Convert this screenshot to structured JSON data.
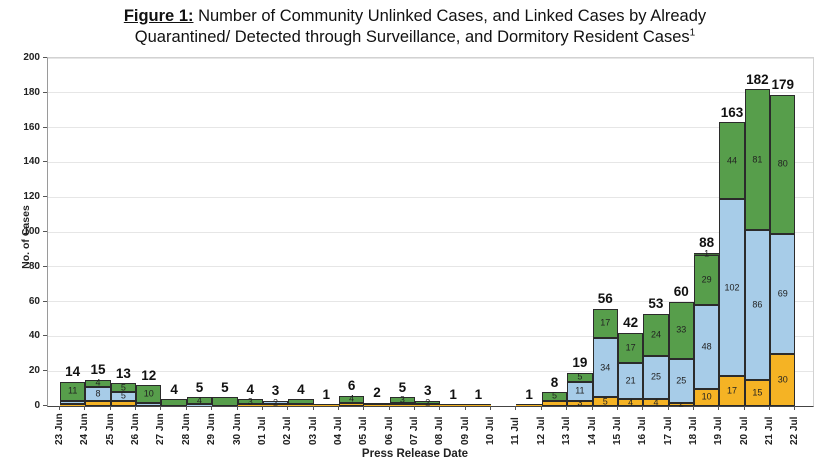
{
  "title": {
    "figure_label": "Figure 1:",
    "line1": " Number of Community Unlinked Cases, and Linked Cases by Already",
    "line2": "Quarantined/ Detected through Surveillance, and Dormitory Resident Cases",
    "superscript": "1"
  },
  "axes": {
    "y_label": "No. of Cases",
    "x_label": "Press Release Date",
    "y_ticks": [
      0,
      20,
      40,
      60,
      80,
      100,
      120,
      140,
      160,
      180,
      200
    ],
    "y_max": 200,
    "x_tick_labels": [
      "23 Jun",
      "24 Jun",
      "25 Jun",
      "26 Jun",
      "27 Jun",
      "28 Jun",
      "29 Jun",
      "30 Jun",
      "01 Jul",
      "02 Jul",
      "03 Jul",
      "04 Jul",
      "05 Jul",
      "06 Jul",
      "07 Jul",
      "08 Jul",
      "09 Jul",
      "10 Jul",
      "11 Jul",
      "12 Jul",
      "13 Jul",
      "14 Jul",
      "15 Jul",
      "16 Jul",
      "17 Jul",
      "18 Jul",
      "19 Jul",
      "20 Jul",
      "21 Jul",
      "22 Jul"
    ]
  },
  "colors": {
    "green": "#579e4b",
    "blue": "#a7cce8",
    "orange": "#f5b324",
    "dark_green": "#3f6b36",
    "bar_border": "#2b2b2b",
    "grid": "#e6e6e6",
    "axis": "#444444"
  },
  "chart_data": {
    "type": "bar",
    "stacked": true,
    "title": "Number of Community Unlinked Cases, and Linked Cases by Already Quarantined/ Detected through Surveillance, and Dormitory Resident Cases",
    "xlabel": "Press Release Date",
    "ylabel": "No. of Cases",
    "ylim": [
      0,
      200
    ],
    "grid": true,
    "legend_position": "none",
    "segment_order_top_to_bottom": [
      "dark_green",
      "green",
      "blue",
      "orange"
    ],
    "bars": [
      {
        "date": "24 Jun",
        "total": 14,
        "segments": [
          {
            "color": "green",
            "value": 11,
            "label": "11"
          },
          {
            "color": "blue",
            "value": 2
          },
          {
            "color": "orange",
            "value": 1
          }
        ]
      },
      {
        "date": "25 Jun",
        "total": 15,
        "segments": [
          {
            "color": "green",
            "value": 4,
            "label": "4"
          },
          {
            "color": "blue",
            "value": 8,
            "label": "8"
          },
          {
            "color": "orange",
            "value": 3
          }
        ]
      },
      {
        "date": "26 Jun",
        "total": 13,
        "segments": [
          {
            "color": "green",
            "value": 5,
            "label": "5"
          },
          {
            "color": "blue",
            "value": 5,
            "label": "5"
          },
          {
            "color": "orange",
            "value": 3
          }
        ]
      },
      {
        "date": "27 Jun",
        "total": 12,
        "segments": [
          {
            "color": "green",
            "value": 10,
            "label": "10"
          },
          {
            "color": "blue",
            "value": 2
          }
        ]
      },
      {
        "date": "28 Jun",
        "total": 4,
        "segments": [
          {
            "color": "green",
            "value": 4
          }
        ]
      },
      {
        "date": "29 Jun",
        "total": 5,
        "segments": [
          {
            "color": "green",
            "value": 4,
            "label": "4"
          },
          {
            "color": "blue",
            "value": 1
          }
        ]
      },
      {
        "date": "30 Jun",
        "total": 5,
        "segments": [
          {
            "color": "green",
            "value": 5
          }
        ]
      },
      {
        "date": "01 Jul",
        "total": 4,
        "segments": [
          {
            "color": "green",
            "value": 3,
            "label": "3"
          },
          {
            "color": "orange",
            "value": 1
          }
        ]
      },
      {
        "date": "02 Jul",
        "total": 3,
        "segments": [
          {
            "color": "blue",
            "value": 2,
            "label": "2"
          },
          {
            "color": "orange",
            "value": 1
          }
        ]
      },
      {
        "date": "03 Jul",
        "total": 4,
        "segments": [
          {
            "color": "green",
            "value": 3
          },
          {
            "color": "orange",
            "value": 1
          }
        ]
      },
      {
        "date": "04 Jul",
        "total": 1,
        "segments": [
          {
            "color": "orange",
            "value": 1
          }
        ]
      },
      {
        "date": "05 Jul",
        "total": 6,
        "segments": [
          {
            "color": "green",
            "value": 4,
            "label": "4"
          },
          {
            "color": "orange",
            "value": 2
          }
        ]
      },
      {
        "date": "06 Jul",
        "total": 2,
        "segments": [
          {
            "color": "green",
            "value": 1
          },
          {
            "color": "orange",
            "value": 1
          }
        ]
      },
      {
        "date": "07 Jul",
        "total": 5,
        "segments": [
          {
            "color": "green",
            "value": 3,
            "label": "3"
          },
          {
            "color": "blue",
            "value": 1
          },
          {
            "color": "orange",
            "value": 1
          }
        ]
      },
      {
        "date": "08 Jul",
        "total": 3,
        "segments": [
          {
            "color": "green",
            "value": 2,
            "label": "2"
          },
          {
            "color": "orange",
            "value": 1
          }
        ]
      },
      {
        "date": "09 Jul",
        "total": 1,
        "segments": [
          {
            "color": "orange",
            "value": 1
          }
        ]
      },
      {
        "date": "10 Jul",
        "total": 1,
        "segments": [
          {
            "color": "orange",
            "value": 1
          }
        ]
      },
      {
        "date": "11 Jul",
        "total": 0,
        "segments": []
      },
      {
        "date": "12 Jul",
        "total": 1,
        "segments": [
          {
            "color": "orange",
            "value": 1
          }
        ]
      },
      {
        "date": "13 Jul",
        "total": 8,
        "segments": [
          {
            "color": "green",
            "value": 5,
            "label": "5"
          },
          {
            "color": "orange",
            "value": 3
          }
        ]
      },
      {
        "date": "14 Jul",
        "total": 19,
        "segments": [
          {
            "color": "green",
            "value": 5,
            "label": "5"
          },
          {
            "color": "blue",
            "value": 11,
            "label": "11"
          },
          {
            "color": "orange",
            "value": 3,
            "label": "3"
          }
        ]
      },
      {
        "date": "15 Jul",
        "total": 56,
        "segments": [
          {
            "color": "green",
            "value": 17,
            "label": "17"
          },
          {
            "color": "blue",
            "value": 34,
            "label": "34"
          },
          {
            "color": "orange",
            "value": 5,
            "label": "5"
          }
        ]
      },
      {
        "date": "16 Jul",
        "total": 42,
        "segments": [
          {
            "color": "green",
            "value": 17,
            "label": "17"
          },
          {
            "color": "blue",
            "value": 21,
            "label": "21"
          },
          {
            "color": "orange",
            "value": 4,
            "label": "4"
          }
        ]
      },
      {
        "date": "17 Jul",
        "total": 53,
        "segments": [
          {
            "color": "green",
            "value": 24,
            "label": "24"
          },
          {
            "color": "blue",
            "value": 25,
            "label": "25"
          },
          {
            "color": "orange",
            "value": 4,
            "label": "4"
          }
        ]
      },
      {
        "date": "18 Jul",
        "total": 60,
        "segments": [
          {
            "color": "green",
            "value": 33,
            "label": "33"
          },
          {
            "color": "blue",
            "value": 25,
            "label": "25"
          },
          {
            "color": "orange",
            "value": 2,
            "label": "2"
          }
        ]
      },
      {
        "date": "19 Jul",
        "total": 88,
        "segments": [
          {
            "color": "dark_green",
            "value": 1,
            "label": "1"
          },
          {
            "color": "green",
            "value": 29,
            "label": "29"
          },
          {
            "color": "blue",
            "value": 48,
            "label": "48"
          },
          {
            "color": "orange",
            "value": 10,
            "label": "10"
          }
        ]
      },
      {
        "date": "20 Jul",
        "total": 163,
        "segments": [
          {
            "color": "green",
            "value": 44,
            "label": "44"
          },
          {
            "color": "blue",
            "value": 102,
            "label": "102"
          },
          {
            "color": "orange",
            "value": 17,
            "label": "17"
          }
        ]
      },
      {
        "date": "21 Jul",
        "total": 182,
        "segments": [
          {
            "color": "green",
            "value": 81,
            "label": "81"
          },
          {
            "color": "blue",
            "value": 86,
            "label": "86"
          },
          {
            "color": "orange",
            "value": 15,
            "label": "15"
          }
        ]
      },
      {
        "date": "22 Jul",
        "total": 179,
        "segments": [
          {
            "color": "green",
            "value": 80,
            "label": "80"
          },
          {
            "color": "blue",
            "value": 69,
            "label": "69"
          },
          {
            "color": "orange",
            "value": 30,
            "label": "30"
          }
        ]
      }
    ]
  }
}
